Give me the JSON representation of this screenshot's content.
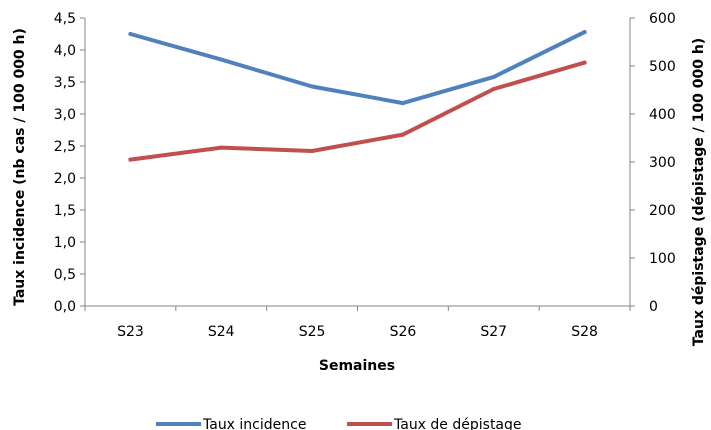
{
  "chart_data": {
    "type": "line",
    "title": "",
    "xlabel": "Semaines",
    "ylabel_left": "Taux incidence  (nb cas / 100 000 h)",
    "ylabel_right": "Taux dépistage (dépistage / 100 000 h)",
    "categories": [
      "S23",
      "S24",
      "S25",
      "S26",
      "S27",
      "S28"
    ],
    "y_left": {
      "min": 0,
      "max": 4.5,
      "ticks": [
        "0,0",
        "0,5",
        "1,0",
        "1,5",
        "2,0",
        "2,5",
        "3,0",
        "3,5",
        "4,0",
        "4,5"
      ]
    },
    "y_right": {
      "min": 0,
      "max": 600,
      "ticks": [
        "0",
        "100",
        "200",
        "300",
        "400",
        "500",
        "600"
      ]
    },
    "series": [
      {
        "name": "Taux incidence",
        "axis": "left",
        "color": "#4F81BD",
        "values": [
          4.25,
          3.85,
          3.43,
          3.17,
          3.58,
          4.28
        ]
      },
      {
        "name": "Taux de dépistage",
        "axis": "right",
        "color": "#C0504D",
        "values": [
          305,
          330,
          323,
          357,
          452,
          507
        ]
      }
    ],
    "legend_position": "bottom",
    "grid": false
  }
}
